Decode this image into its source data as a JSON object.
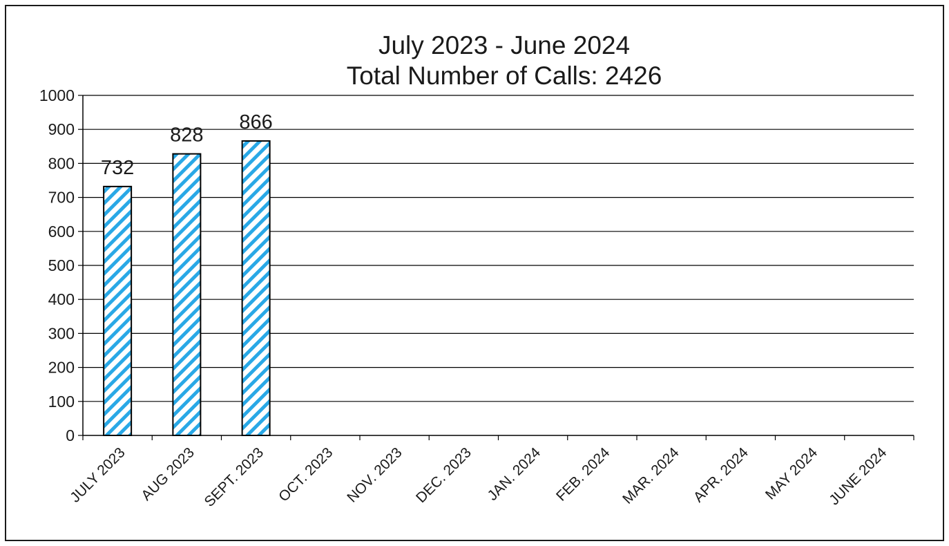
{
  "chart_data": {
    "type": "bar",
    "title": "July 2023 - June 2024",
    "subtitle": "Total Number of Calls: 2426",
    "categories": [
      "JULY 2023",
      "AUG 2023",
      "SEPT. 2023",
      "OCT. 2023",
      "NOV. 2023",
      "DEC. 2023",
      "JAN. 2024",
      "FEB. 2024",
      "MAR. 2024",
      "APR. 2024",
      "MAY 2024",
      "JUNE 2024"
    ],
    "values": [
      732,
      828,
      866,
      null,
      null,
      null,
      null,
      null,
      null,
      null,
      null,
      null
    ],
    "data_labels": [
      "732",
      "828",
      "866",
      "",
      "",
      "",
      "",
      "",
      "",
      "",
      "",
      ""
    ],
    "y_ticks": [
      "0",
      "100",
      "200",
      "300",
      "400",
      "500",
      "600",
      "700",
      "800",
      "900",
      "1000"
    ],
    "xlabel": "",
    "ylabel": "",
    "ylim": [
      0,
      1000
    ],
    "grid": true,
    "legend": "none",
    "colors": {
      "bar_stripe": "#29a8e6",
      "bar_fill": "#ffffff",
      "bar_outline": "#000000",
      "gridline": "#000000",
      "frame": "#1a1a1a"
    }
  }
}
